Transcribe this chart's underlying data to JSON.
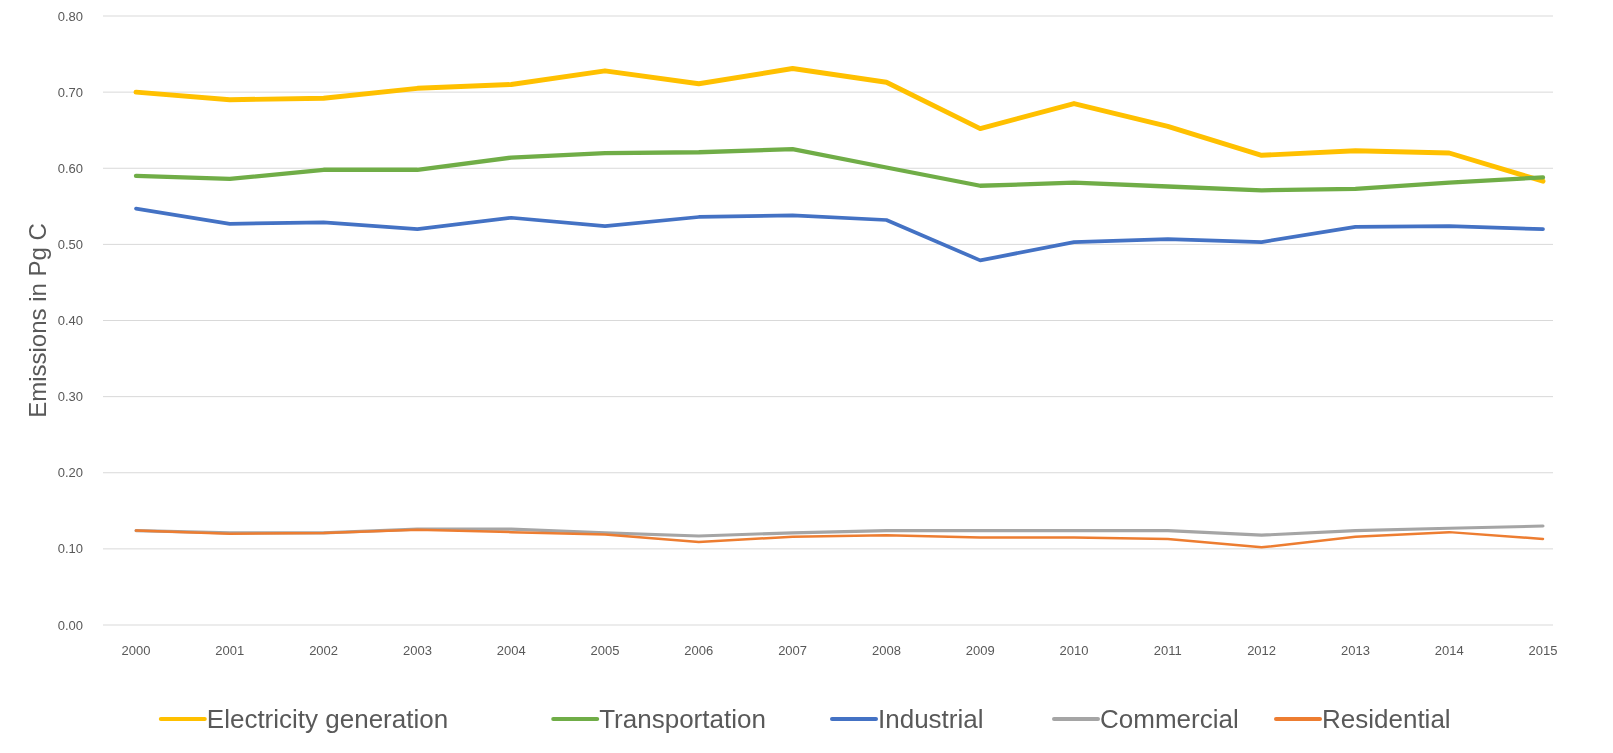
{
  "chart_data": {
    "type": "line",
    "ylabel": "Emissions in Pg C",
    "categories": [
      "2000",
      "2001",
      "2002",
      "2003",
      "2004",
      "2005",
      "2006",
      "2007",
      "2008",
      "2009",
      "2010",
      "2011",
      "2012",
      "2013",
      "2014",
      "2015"
    ],
    "series": [
      {
        "name": "Electricity generation",
        "color": "#ffc000",
        "values": [
          0.7,
          0.69,
          0.692,
          0.705,
          0.71,
          0.728,
          0.711,
          0.731,
          0.713,
          0.652,
          0.685,
          0.655,
          0.617,
          0.623,
          0.62,
          0.583
        ]
      },
      {
        "name": "Transportation",
        "color": "#70ad47",
        "values": [
          0.59,
          0.586,
          0.598,
          0.598,
          0.614,
          0.62,
          0.621,
          0.625,
          0.601,
          0.577,
          0.581,
          0.576,
          0.571,
          0.573,
          0.581,
          0.588
        ]
      },
      {
        "name": "Industrial",
        "color": "#4472c4",
        "values": [
          0.547,
          0.527,
          0.529,
          0.52,
          0.535,
          0.524,
          0.536,
          0.538,
          0.532,
          0.479,
          0.503,
          0.507,
          0.503,
          0.523,
          0.524,
          0.52
        ]
      },
      {
        "name": "Commercial",
        "color": "#a5a5a5",
        "values": [
          0.124,
          0.121,
          0.121,
          0.126,
          0.126,
          0.121,
          0.117,
          0.121,
          0.124,
          0.124,
          0.124,
          0.124,
          0.118,
          0.124,
          0.127,
          0.13
        ]
      },
      {
        "name": "Residential",
        "color": "#ed7d31",
        "values": [
          0.124,
          0.12,
          0.121,
          0.125,
          0.122,
          0.119,
          0.109,
          0.116,
          0.118,
          0.115,
          0.115,
          0.113,
          0.102,
          0.116,
          0.122,
          0.113
        ]
      }
    ],
    "ylim": [
      0,
      0.8
    ],
    "yticks": [
      {
        "value": 0,
        "label": "0.00"
      },
      {
        "value": 0.1,
        "label": "0.10"
      },
      {
        "value": 0.2,
        "label": "0.20"
      },
      {
        "value": 0.3,
        "label": "0.30"
      },
      {
        "value": 0.4,
        "label": "0.40"
      },
      {
        "value": 0.5,
        "label": "0.50"
      },
      {
        "value": 0.6,
        "label": "0.60"
      },
      {
        "value": 0.7,
        "label": "0.70"
      },
      {
        "value": 0.8,
        "label": "0.80"
      }
    ],
    "grid": "y",
    "legend": "bottom",
    "marker": "none",
    "line_style": "solid"
  }
}
